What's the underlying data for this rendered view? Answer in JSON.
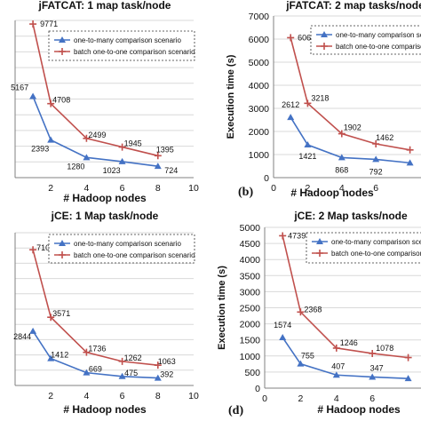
{
  "chart_data": [
    {
      "type": "line",
      "title": "jFATCAT: 1 map task/node",
      "xlabel": "# Hadoop nodes",
      "ylabel": "",
      "xlim": [
        0,
        10
      ],
      "xticks": [
        2,
        4,
        6,
        8,
        10
      ],
      "ylim": [
        0,
        10000
      ],
      "grid": true,
      "legend": "top-right",
      "panel_label": "",
      "series": [
        {
          "name": "one-to-many comparison scenario",
          "color": "#4472c4",
          "marker": "triangle",
          "x": [
            1,
            2,
            4,
            6,
            8
          ],
          "values": [
            5167,
            2393,
            1280,
            1023,
            724
          ],
          "labels": [
            "5167",
            "2393",
            "1280",
            "1023",
            "724"
          ]
        },
        {
          "name": "batch one-to-one comparison scenario",
          "color": "#c0504d",
          "marker": "plus",
          "x": [
            1,
            2,
            4,
            6,
            8
          ],
          "values": [
            9771,
            4708,
            2499,
            1945,
            1395
          ],
          "labels": [
            "9771",
            "4708",
            "2499",
            "1945",
            "1395"
          ]
        }
      ]
    },
    {
      "type": "line",
      "title": "jFATCAT: 2 map tasks/node",
      "xlabel": "# Hadoop nodes",
      "ylabel": "Execution time (s)",
      "xlim": [
        0,
        10
      ],
      "xticks": [
        0,
        2,
        4,
        6
      ],
      "ylim": [
        0,
        7000
      ],
      "yticks": [
        0,
        1000,
        2000,
        3000,
        4000,
        5000,
        6000,
        7000
      ],
      "grid": true,
      "legend": "top-right",
      "panel_label": "(b)",
      "series": [
        {
          "name": "one-to-many comparison scenario",
          "color": "#4472c4",
          "marker": "triangle",
          "x": [
            1,
            2,
            4,
            6,
            8
          ],
          "values": [
            2612,
            1421,
            868,
            792,
            640
          ],
          "labels": [
            "2612",
            "1421",
            "868",
            "792",
            ""
          ]
        },
        {
          "name": "batch one-to-one comparison scenario",
          "color": "#c0504d",
          "marker": "plus",
          "x": [
            1,
            2,
            4,
            6,
            8
          ],
          "values": [
            6062,
            3218,
            1902,
            1462,
            1200
          ],
          "labels": [
            "6062",
            "3218",
            "1902",
            "1462",
            ""
          ]
        }
      ]
    },
    {
      "type": "line",
      "title": "jCE: 1 Map task/node",
      "xlabel": "# Hadoop nodes",
      "ylabel": "",
      "xlim": [
        0,
        10
      ],
      "xticks": [
        2,
        4,
        6,
        8,
        10
      ],
      "ylim": [
        0,
        8000
      ],
      "grid": true,
      "legend": "top-right",
      "panel_label": "",
      "series": [
        {
          "name": "one-to-many comparison scenario",
          "color": "#4472c4",
          "marker": "triangle",
          "x": [
            1,
            2,
            4,
            6,
            8
          ],
          "values": [
            2844,
            1412,
            669,
            475,
            392
          ],
          "labels": [
            "2844",
            "1412",
            "669",
            "475",
            "392"
          ]
        },
        {
          "name": "batch one-to-one comparison scenario",
          "color": "#c0504d",
          "marker": "plus",
          "x": [
            1,
            2,
            4,
            6,
            8
          ],
          "values": [
            7106,
            3571,
            1736,
            1262,
            1063
          ],
          "labels": [
            "7106",
            "3571",
            "1736",
            "1262",
            "1063"
          ]
        }
      ]
    },
    {
      "type": "line",
      "title": "jCE: 2 Map tasks/node",
      "xlabel": "# Hadoop nodes",
      "ylabel": "Execution time (s)",
      "xlim": [
        0,
        10
      ],
      "xticks": [
        0,
        2,
        4,
        6
      ],
      "ylim": [
        0,
        5000
      ],
      "yticks": [
        0,
        500,
        1000,
        1500,
        2000,
        2500,
        3000,
        3500,
        4000,
        4500,
        5000
      ],
      "grid": true,
      "legend": "top-right",
      "panel_label": "(d)",
      "series": [
        {
          "name": "one-to-many comparison scenario",
          "color": "#4472c4",
          "marker": "triangle",
          "x": [
            1,
            2,
            4,
            6,
            8
          ],
          "values": [
            1574,
            755,
            407,
            347,
            300
          ],
          "labels": [
            "1574",
            "755",
            "407",
            "347",
            ""
          ]
        },
        {
          "name": "batch one-to-one comparison scenario",
          "color": "#c0504d",
          "marker": "plus",
          "x": [
            1,
            2,
            4,
            6,
            8
          ],
          "values": [
            4739,
            2368,
            1246,
            1078,
            950
          ],
          "labels": [
            "4739",
            "2368",
            "1246",
            "1078",
            ""
          ]
        }
      ]
    }
  ]
}
